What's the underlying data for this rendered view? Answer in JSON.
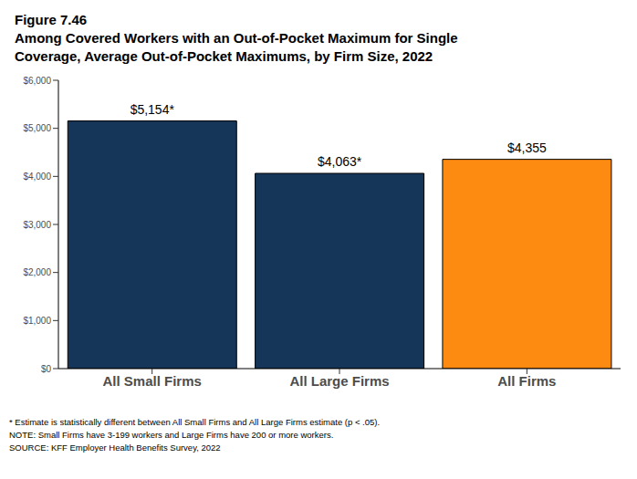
{
  "chart_data": {
    "type": "bar",
    "title": "Figure 7.46",
    "subtitle": "Among Covered Workers with an Out-of-Pocket Maximum for Single Coverage, Average Out-of-Pocket Maximums, by Firm Size, 2022",
    "categories": [
      "All Small Firms",
      "All Large Firms",
      "All Firms"
    ],
    "values": [
      5154,
      4063,
      4355
    ],
    "value_labels": [
      "$5,154*",
      "$4,063*",
      "$4,355"
    ],
    "colors": [
      "#153559",
      "#153559",
      "#fd8b12"
    ],
    "data_labels": true,
    "ylim": [
      0,
      6000
    ],
    "yticks": [
      {
        "value": 0,
        "label": "$0"
      },
      {
        "value": 1000,
        "label": "$1,000"
      },
      {
        "value": 2000,
        "label": "$2,000"
      },
      {
        "value": 3000,
        "label": "$3,000"
      },
      {
        "value": 4000,
        "label": "$4,000"
      },
      {
        "value": 5000,
        "label": "$5,000"
      },
      {
        "value": 6000,
        "label": "$6,000"
      }
    ],
    "grid": false,
    "notes": [
      "* Estimate is statistically different between All Small Firms and All Large Firms estimate (p < .05).",
      "NOTE: Small Firms have 3-199 workers and Large Firms have 200 or more workers.",
      "SOURCE: KFF Employer Health Benefits Survey, 2022"
    ]
  }
}
